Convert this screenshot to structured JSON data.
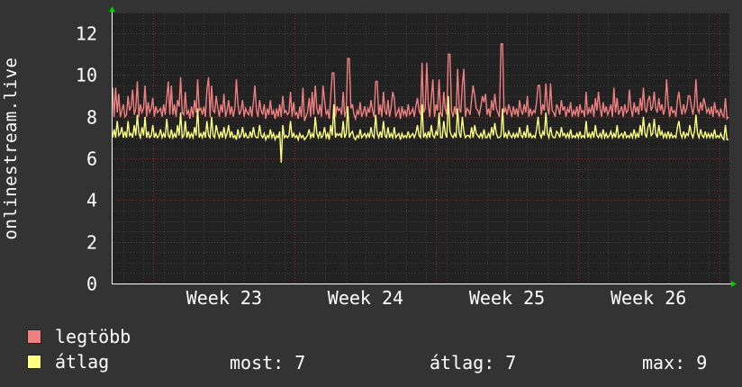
{
  "chart_data": {
    "type": "line",
    "ylabel": "onlinestream.live",
    "ylim": [
      0,
      13
    ],
    "yticks": [
      0,
      2,
      4,
      6,
      8,
      10,
      12
    ],
    "x_tick_labels": [
      "Week 23",
      "Week 24",
      "Week 25",
      "Week 26"
    ],
    "grid": true,
    "series": [
      {
        "name": "legtöbb",
        "color": "#f08080",
        "values": [
          9.4,
          8.0,
          8.9,
          8.2,
          9.1,
          8.0,
          8.3,
          8.6,
          8.0,
          8.1,
          9.0,
          8.3,
          8.5,
          9.3,
          8.1,
          8.4,
          9.7,
          8.0,
          8.6,
          8.2,
          8.4,
          9.5,
          8.0,
          8.7,
          8.2,
          8.4,
          8.9,
          8.0,
          8.5,
          8.2,
          8.3,
          8.4,
          8.0,
          8.6,
          8.1,
          8.9,
          8.3,
          8.1,
          9.0,
          8.1,
          8.6,
          8.0,
          8.8,
          8.5,
          9.9,
          8.2,
          8.1,
          9.2,
          8.1,
          8.3,
          7.9,
          8.5,
          8.0,
          8.8,
          8.2,
          9.8,
          8.3,
          8.4,
          8.1,
          8.5,
          8.0,
          9.3,
          8.2,
          8.0,
          9.5,
          8.3,
          8.2,
          9.0,
          8.4,
          8.0,
          8.6,
          8.2,
          9.1,
          8.0,
          8.3,
          8.8,
          8.1,
          8.5,
          8.0,
          8.4,
          7.9,
          8.6,
          8.1,
          8.3,
          8.8,
          8.0,
          8.4,
          8.2,
          8.1,
          8.5,
          8.0,
          8.7,
          8.2,
          8.3,
          8.0,
          8.8,
          8.3,
          8.1,
          8.6,
          7.9,
          8.4,
          8.1,
          8.8,
          8.1,
          8.3,
          7.9,
          8.4,
          8.0,
          8.6,
          8.0,
          9.0,
          8.2,
          8.3,
          8.1,
          8.2,
          9.2,
          8.0,
          8.7,
          8.1,
          8.2,
          7.9,
          8.5,
          8.0,
          8.3,
          7.8,
          8.0,
          8.2,
          8.9,
          8.0,
          8.3,
          8.1,
          9.5,
          8.4,
          8.1,
          8.6,
          8.0,
          8.2,
          8.8,
          8.1,
          8.3,
          7.9,
          9.0,
          8.4,
          10.1,
          8.0,
          8.5,
          8.3,
          8.4,
          8.1,
          9.2,
          8.0,
          8.3,
          10.8,
          8.2,
          8.4,
          8.6,
          8.1,
          7.9,
          8.3,
          8.1,
          8.7,
          8.0,
          8.2,
          8.5,
          8.0,
          8.4,
          8.2,
          8.8,
          8.3,
          8.0,
          9.7,
          8.4,
          8.1,
          8.6,
          8.0,
          9.2,
          8.3,
          8.1,
          8.8,
          8.0,
          8.4,
          8.1,
          8.9,
          8.0,
          8.2,
          8.4,
          7.9,
          8.5,
          8.1,
          8.3,
          8.0,
          8.6,
          8.1,
          8.2,
          8.4,
          8.0,
          8.5,
          8.9,
          8.3,
          8.1,
          10.6,
          8.2,
          8.4,
          8.1,
          8.6,
          8.0,
          8.9,
          8.2,
          8.0,
          8.6,
          8.3,
          9.8,
          8.2,
          8.0,
          9.2,
          8.4,
          8.1,
          11.0,
          8.6,
          8.3,
          8.0,
          8.5,
          8.1,
          10.3,
          8.4,
          8.2,
          9.5,
          8.6,
          8.0,
          8.4,
          8.3,
          8.1,
          8.8,
          8.0,
          9.0,
          8.4,
          8.3,
          8.1,
          8.5,
          8.0,
          8.7,
          8.2,
          8.1,
          8.4,
          8.0,
          8.8,
          8.3,
          9.1,
          8.4,
          8.2,
          8.0,
          8.3,
          11.5,
          8.2,
          8.4,
          8.1,
          8.6,
          8.3,
          8.0,
          8.5,
          8.1,
          8.4,
          8.0,
          8.8,
          8.3,
          8.1,
          8.6,
          8.2,
          9.0,
          8.0,
          8.4,
          8.1,
          8.3,
          8.2,
          8.7,
          9.5,
          8.4,
          8.1,
          8.6,
          8.3,
          9.6,
          8.5,
          8.1,
          8.9,
          8.3,
          8.2,
          8.0,
          8.6,
          8.4,
          8.1,
          8.8,
          8.3,
          8.5,
          8.0,
          8.4,
          8.2,
          8.7,
          8.0,
          8.3,
          8.1,
          8.5,
          8.0,
          8.6,
          8.2,
          8.3,
          8.0,
          9.2,
          8.1,
          8.4,
          8.2,
          8.6,
          8.0,
          8.9,
          8.3,
          8.1,
          8.4,
          8.0,
          8.7,
          8.2,
          8.5,
          8.1,
          8.3,
          8.6,
          8.0,
          8.4,
          8.2,
          8.9,
          8.1,
          8.3,
          8.5,
          8.0,
          8.6,
          8.2,
          8.3,
          8.1,
          8.4,
          8.0,
          8.7,
          8.2,
          8.5,
          8.1,
          8.9,
          8.3,
          9.4,
          8.4,
          8.2,
          8.8,
          9.0,
          8.3,
          8.5,
          9.3,
          8.4,
          8.2,
          8.9,
          8.3,
          8.6,
          8.1,
          8.4,
          8.2,
          8.6,
          8.0,
          8.5,
          8.2,
          8.3,
          8.0,
          8.8,
          9.2,
          8.5,
          8.1,
          8.6,
          8.2,
          8.4,
          8.3,
          9.0,
          8.5,
          8.1,
          8.6,
          9.8,
          8.4,
          8.2,
          8.7,
          8.3,
          8.0,
          8.6,
          8.2,
          8.4,
          8.1,
          8.5,
          8.0,
          8.7,
          8.2,
          8.3,
          8.0,
          8.4,
          8.1,
          8.0,
          8.9,
          7.9,
          8.0
        ],
        "peaks": [
          [
            0.005,
            9.4
          ],
          [
            0.09,
            9.7
          ],
          [
            0.095,
            9.5
          ],
          [
            0.155,
            9.9
          ],
          [
            0.2,
            9.8
          ],
          [
            0.23,
            9.5
          ],
          [
            0.31,
            9.4
          ],
          [
            0.325,
            9.2
          ],
          [
            0.342,
            9.5
          ],
          [
            0.358,
            10.1
          ],
          [
            0.385,
            10.8
          ],
          [
            0.43,
            9.7
          ],
          [
            0.455,
            9.2
          ],
          [
            0.51,
            10.6
          ],
          [
            0.52,
            9.8
          ],
          [
            0.548,
            11.0
          ],
          [
            0.57,
            10.3
          ],
          [
            0.585,
            9.5
          ],
          [
            0.6,
            9.0
          ],
          [
            0.606,
            9.1
          ],
          [
            0.63,
            11.5
          ],
          [
            0.693,
            9.5
          ],
          [
            0.712,
            9.6
          ],
          [
            0.79,
            9.2
          ],
          [
            0.815,
            9.4
          ],
          [
            0.84,
            9.3
          ],
          [
            0.88,
            9.2
          ],
          [
            0.9,
            9.8
          ],
          [
            0.935,
            9.0
          ],
          [
            0.96,
            8.9
          ]
        ]
      },
      {
        "name": "átlag",
        "color": "#ffff80",
        "values": [
          7.0,
          7.4,
          7.0,
          7.8,
          7.1,
          7.2,
          7.5,
          7.0,
          7.3,
          7.0,
          7.8,
          7.1,
          7.2,
          7.0,
          7.6,
          7.1,
          8.1,
          7.2,
          7.0,
          7.5,
          7.1,
          8.0,
          7.0,
          7.3,
          7.0,
          7.1,
          7.6,
          7.0,
          7.2,
          7.0,
          7.1,
          7.4,
          7.0,
          7.2,
          7.0,
          7.9,
          7.1,
          7.0,
          7.4,
          7.0,
          7.2,
          7.0,
          7.6,
          7.1,
          8.2,
          7.0,
          7.1,
          7.8,
          7.0,
          7.3,
          7.0,
          7.2,
          7.0,
          7.5,
          7.1,
          8.4,
          7.0,
          7.2,
          7.0,
          7.3,
          7.0,
          7.8,
          7.1,
          7.0,
          8.0,
          7.1,
          7.0,
          7.6,
          7.2,
          7.0,
          7.3,
          7.0,
          7.5,
          7.0,
          7.2,
          7.6,
          7.0,
          7.3,
          7.0,
          7.1,
          6.9,
          7.4,
          7.0,
          7.1,
          7.5,
          7.0,
          7.2,
          7.0,
          7.0,
          7.3,
          7.0,
          7.5,
          7.1,
          7.0,
          7.0,
          7.6,
          7.1,
          7.0,
          7.2,
          6.9,
          7.1,
          7.0,
          7.4,
          7.0,
          7.2,
          6.9,
          7.1,
          7.0,
          7.3,
          5.8,
          7.6,
          7.0,
          7.1,
          7.0,
          7.1,
          7.8,
          7.0,
          7.2,
          7.0,
          7.1,
          6.9,
          7.2,
          7.0,
          7.1,
          6.9,
          7.0,
          7.1,
          7.4,
          7.0,
          7.2,
          7.0,
          8.0,
          7.2,
          7.0,
          7.3,
          7.0,
          7.1,
          7.5,
          7.0,
          7.2,
          6.9,
          7.6,
          7.1,
          8.6,
          7.0,
          7.2,
          7.1,
          7.2,
          7.0,
          7.8,
          7.0,
          7.2,
          8.5,
          7.0,
          7.2,
          7.3,
          7.0,
          6.9,
          7.1,
          7.0,
          7.4,
          7.0,
          7.1,
          7.2,
          7.0,
          7.2,
          7.0,
          7.5,
          7.1,
          7.0,
          8.1,
          7.2,
          7.0,
          7.3,
          7.0,
          7.8,
          7.1,
          7.0,
          7.5,
          7.0,
          7.2,
          7.0,
          7.5,
          7.0,
          7.1,
          7.2,
          6.9,
          7.2,
          7.0,
          7.1,
          7.0,
          7.3,
          7.0,
          7.1,
          7.2,
          7.0,
          7.2,
          7.6,
          7.1,
          7.0,
          8.6,
          7.0,
          7.2,
          7.0,
          7.3,
          7.0,
          7.6,
          7.1,
          7.0,
          7.3,
          7.1,
          8.2,
          7.0,
          7.0,
          7.8,
          7.2,
          7.0,
          9.0,
          7.3,
          7.1,
          7.0,
          7.2,
          7.0,
          8.4,
          7.2,
          7.0,
          8.0,
          7.3,
          7.0,
          7.1,
          7.1,
          7.0,
          7.5,
          7.0,
          7.6,
          7.2,
          7.1,
          7.0,
          7.2,
          7.0,
          7.4,
          7.0,
          7.0,
          7.2,
          7.0,
          7.5,
          7.1,
          7.7,
          7.2,
          7.0,
          7.0,
          7.1,
          8.4,
          7.0,
          7.2,
          7.0,
          7.3,
          7.1,
          7.0,
          7.2,
          7.0,
          7.2,
          7.0,
          7.5,
          7.1,
          7.0,
          7.3,
          7.0,
          7.6,
          7.0,
          7.2,
          7.0,
          7.1,
          7.0,
          7.4,
          8.0,
          7.2,
          7.0,
          7.3,
          7.1,
          8.2,
          7.2,
          7.0,
          7.5,
          7.1,
          7.0,
          7.0,
          7.3,
          7.2,
          7.0,
          7.5,
          7.1,
          7.2,
          7.0,
          7.2,
          7.0,
          7.4,
          7.0,
          7.1,
          7.0,
          7.2,
          7.0,
          7.3,
          7.0,
          7.1,
          7.0,
          7.8,
          7.0,
          7.2,
          7.0,
          7.3,
          7.0,
          7.6,
          7.1,
          7.0,
          7.2,
          7.0,
          7.4,
          7.0,
          7.2,
          7.0,
          7.1,
          7.3,
          7.0,
          7.2,
          7.0,
          7.6,
          7.0,
          7.1,
          7.2,
          7.0,
          7.3,
          7.0,
          7.1,
          7.0,
          7.2,
          7.0,
          7.4,
          7.0,
          7.2,
          7.0,
          7.6,
          7.1,
          8.0,
          7.2,
          7.0,
          7.5,
          7.7,
          7.1,
          7.2,
          7.9,
          7.2,
          7.0,
          7.6,
          7.1,
          7.3,
          7.0,
          7.2,
          7.0,
          7.3,
          7.0,
          7.2,
          7.0,
          7.1,
          7.0,
          7.5,
          7.8,
          7.2,
          7.0,
          7.3,
          7.0,
          7.2,
          7.1,
          7.6,
          7.2,
          7.0,
          7.3,
          8.1,
          7.2,
          7.0,
          7.4,
          7.1,
          7.0,
          7.3,
          7.0,
          7.2,
          7.0,
          7.2,
          7.0,
          7.4,
          7.0,
          7.1,
          7.0,
          7.2,
          7.0,
          6.9,
          7.6,
          6.9,
          6.9
        ]
      }
    ]
  },
  "legend": {
    "max_label": "legtöbb",
    "avg_label": "átlag",
    "max_color": "#f08080",
    "avg_color": "#ffff80"
  },
  "stats": {
    "most": "most: 7",
    "atlag": "átlag: 7",
    "max": "max: 9"
  }
}
